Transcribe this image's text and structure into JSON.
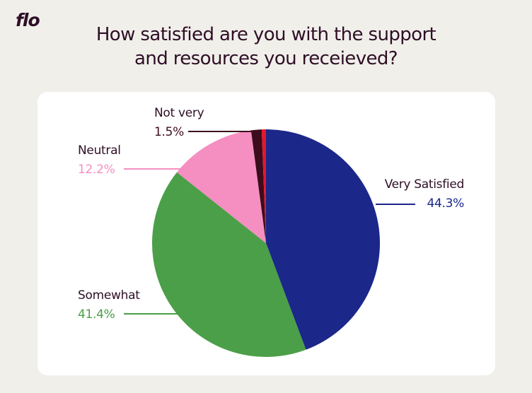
{
  "brand": {
    "logo_text": "flo"
  },
  "header": {
    "title_line1": "How satisfied are you with the support",
    "title_line2": "and resources you receieved?"
  },
  "chart_data": {
    "type": "pie",
    "title": "How satisfied are you with the support and resources you receieved?",
    "slices": [
      {
        "label": "Very Satisfied",
        "value": 44.3,
        "value_label": "44.3%",
        "color": "#1b2789"
      },
      {
        "label": "Somewhat",
        "value": 41.4,
        "value_label": "41.4%",
        "color": "#4b9f48"
      },
      {
        "label": "Neutral",
        "value": 12.2,
        "value_label": "12.2%",
        "color": "#f58ec1"
      },
      {
        "label": "Not very",
        "value": 1.5,
        "value_label": "1.5%",
        "color": "#3d0c1c"
      },
      {
        "label": "",
        "value": 0.6,
        "value_label": "",
        "color": "#e3172d"
      }
    ],
    "legend": "none"
  }
}
